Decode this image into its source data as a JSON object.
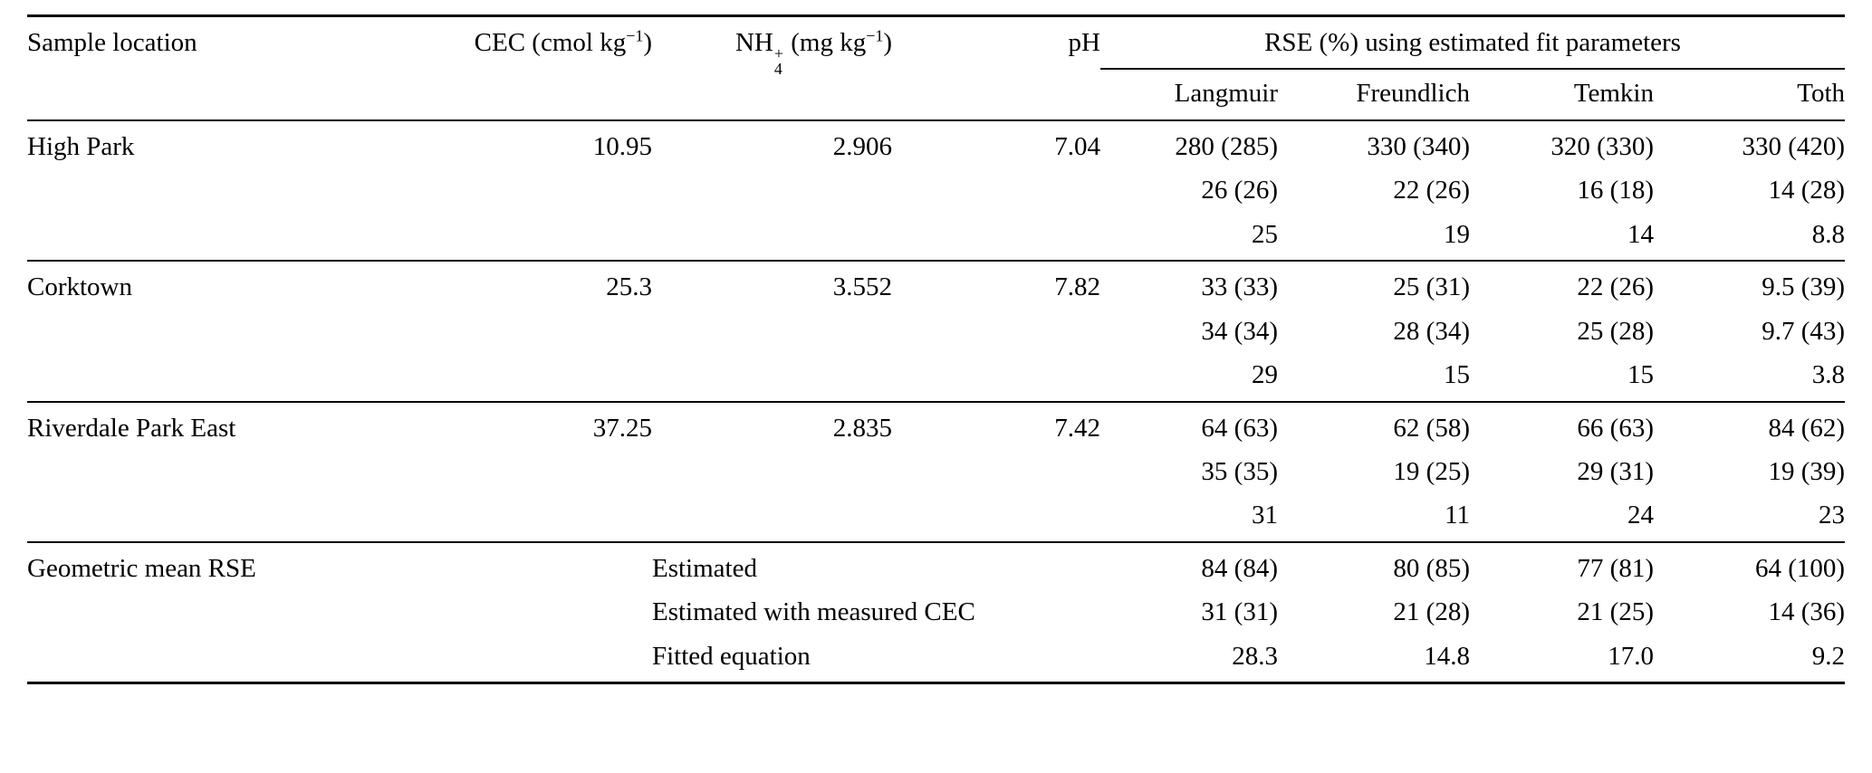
{
  "table": {
    "headers": {
      "sample_location": "Sample location",
      "cec_main": "CEC (cmol kg",
      "cec_sup": "−1",
      "cec_close": ")",
      "nh4_base": "NH",
      "nh4_sub": "4",
      "nh4_sup": "+",
      "nh4_mid": " (mg kg",
      "nh4_sup2": "−1",
      "nh4_close": ")",
      "ph": "pH",
      "rse_group": "RSE (%) using estimated fit parameters",
      "models": [
        "Langmuir",
        "Freundlich",
        "Temkin",
        "Toth"
      ]
    },
    "locations": [
      {
        "name": "High Park",
        "cec": "10.95",
        "nh4": "2.906",
        "ph": "7.04",
        "rse_rows": [
          [
            "280 (285)",
            "330 (340)",
            "320 (330)",
            "330 (420)"
          ],
          [
            "26 (26)",
            "22 (26)",
            "16 (18)",
            "14 (28)"
          ],
          [
            "25",
            "19",
            "14",
            "8.8"
          ]
        ]
      },
      {
        "name": "Corktown",
        "cec": "25.3",
        "nh4": "3.552",
        "ph": "7.82",
        "rse_rows": [
          [
            "33 (33)",
            "25 (31)",
            "22 (26)",
            "9.5 (39)"
          ],
          [
            "34 (34)",
            "28 (34)",
            "25 (28)",
            "9.7 (43)"
          ],
          [
            "29",
            "15",
            "15",
            "3.8"
          ]
        ]
      },
      {
        "name": "Riverdale Park East",
        "cec": "37.25",
        "nh4": "2.835",
        "ph": "7.42",
        "rse_rows": [
          [
            "64 (63)",
            "62 (58)",
            "66 (63)",
            "84 (62)"
          ],
          [
            "35 (35)",
            "19 (25)",
            "29 (31)",
            "19 (39)"
          ],
          [
            "31",
            "11",
            "24",
            "23"
          ]
        ]
      }
    ],
    "summary": {
      "name": "Geometric mean RSE",
      "rows": [
        {
          "label": "Estimated",
          "values": [
            "84 (84)",
            "80 (85)",
            "77 (81)",
            "64 (100)"
          ]
        },
        {
          "label": "Estimated with measured CEC",
          "values": [
            "31 (31)",
            "21 (28)",
            "21 (25)",
            "14 (36)"
          ]
        },
        {
          "label": "Fitted equation",
          "values": [
            "28.3",
            "14.8",
            "17.0",
            "9.2"
          ]
        }
      ]
    }
  }
}
